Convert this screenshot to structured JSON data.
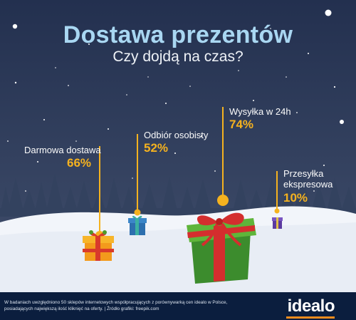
{
  "header": {
    "title": "Dostawa prezentów",
    "subtitle": "Czy dojdą na czas?"
  },
  "chart_data": {
    "type": "bar",
    "title": "Dostawa prezentów",
    "subtitle": "Czy dojdą na czas?",
    "categories": [
      "Darmowa dostawa",
      "Odbiór osobisty",
      "Wysyłka w 24h",
      "Przesyłka ekspresowa"
    ],
    "values": [
      66,
      52,
      74,
      10
    ],
    "value_labels": [
      "66%",
      "52%",
      "74%",
      "10%"
    ],
    "unit": "%"
  },
  "labels": {
    "darmowa": "Darmowa dostawa",
    "odbior": "Odbiór osobisty",
    "wysylka": "Wysyłka w 24h",
    "ekspres_line1": "Przesyłka",
    "ekspres_line2": "ekspresowa"
  },
  "footer": {
    "note_line1": "W badaniach uwzględniono 50 sklepów internetowych współpracujących z porównywarką cen idealo w Polsce,",
    "note_line2": "posiadających największą ilość kliknięć na oferty. | Źródło grafiki: freepik.com",
    "logo": "idealo"
  },
  "colors": {
    "sky_top": "#23304f",
    "sky_bottom": "#3f4d6c",
    "snow": "#f2f5fa",
    "accent": "#f5b21f",
    "title": "#a9d7f2",
    "footer_bg": "#0b1e3e",
    "logo_accent": "#f08c1e"
  }
}
